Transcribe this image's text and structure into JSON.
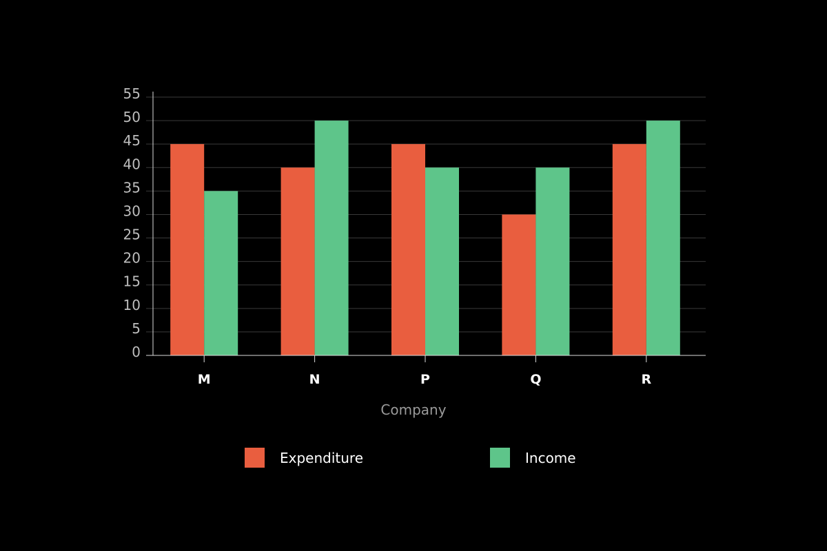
{
  "chart_data": {
    "type": "bar",
    "categories": [
      "M",
      "N",
      "P",
      "Q",
      "R"
    ],
    "series": [
      {
        "name": "Expenditure",
        "values": [
          45,
          40,
          45,
          30,
          45
        ],
        "color": "#e95e3f"
      },
      {
        "name": "Income",
        "values": [
          35,
          50,
          40,
          40,
          50
        ],
        "color": "#5ec58a"
      }
    ],
    "title": "",
    "xlabel": "Company",
    "ylabel": "",
    "ylim": [
      0,
      55
    ],
    "yticks": [
      0,
      5,
      10,
      15,
      20,
      25,
      30,
      35,
      40,
      45,
      50,
      55
    ],
    "grid": true,
    "legend": "bottom"
  }
}
